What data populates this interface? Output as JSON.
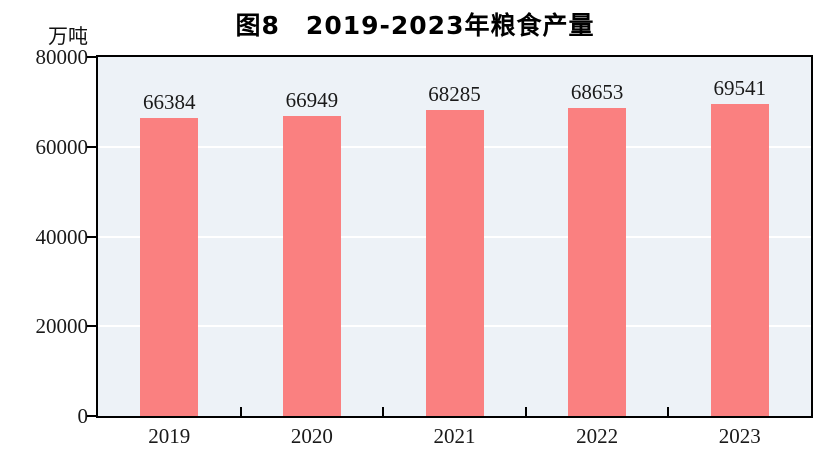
{
  "figure": {
    "title": "图8　2019-2023年粮食产量",
    "unit_label": "万吨"
  },
  "chart_data": {
    "type": "bar",
    "title": "图8　2019-2023年粮食产量",
    "categories": [
      "2019",
      "2020",
      "2021",
      "2022",
      "2023"
    ],
    "values": [
      66384,
      66949,
      68285,
      68653,
      69541
    ],
    "xlabel": "",
    "ylabel": "万吨",
    "ylim": [
      0,
      80000
    ],
    "yticks": [
      0,
      20000,
      40000,
      60000,
      80000
    ],
    "grid": true,
    "legend": "none",
    "data_labels": true,
    "colors": {
      "bar": "#fa8080",
      "plot_background": "#edf2f7",
      "gridline": "#ffffff",
      "axis": "#000000",
      "text": "#1a1a1a",
      "title_text": "#000000",
      "page_background": "#ffffff"
    }
  }
}
